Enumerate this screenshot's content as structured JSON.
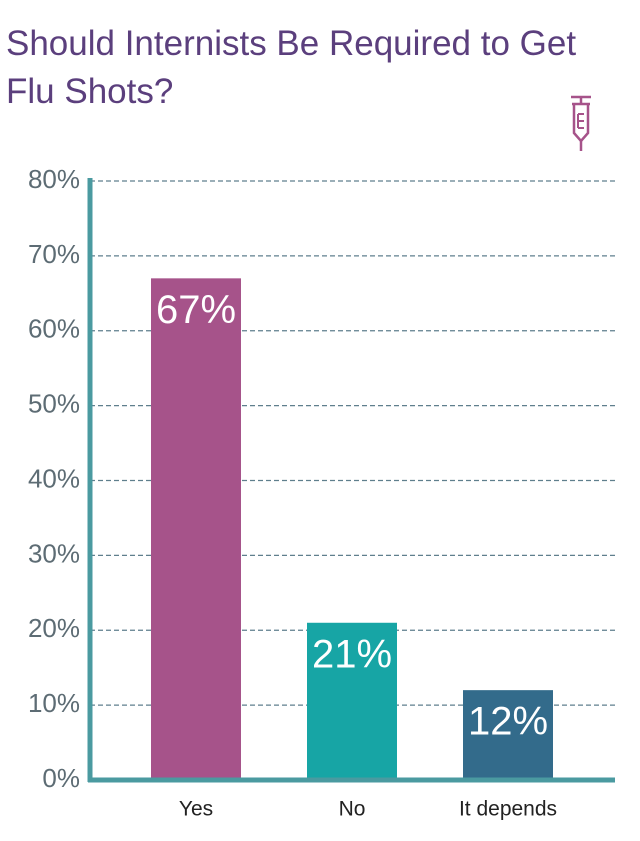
{
  "chart_data": {
    "type": "bar",
    "title": "Should Internists Be Required to Get Flu Shots?",
    "categories": [
      "Yes",
      "No",
      "It depends"
    ],
    "values": [
      67,
      21,
      12
    ],
    "value_labels": [
      "67%",
      "21%",
      "12%"
    ],
    "colors": [
      "#a6538a",
      "#17a5a5",
      "#336b8b"
    ],
    "ylim": [
      0,
      80
    ],
    "yticks": [
      {
        "value": 0,
        "label": "0%"
      },
      {
        "value": 10,
        "label": "10%"
      },
      {
        "value": 20,
        "label": "20%"
      },
      {
        "value": 30,
        "label": "30%"
      },
      {
        "value": 40,
        "label": "40%"
      },
      {
        "value": 50,
        "label": "50%"
      },
      {
        "value": 60,
        "label": "60%"
      },
      {
        "value": 70,
        "label": "70%"
      },
      {
        "value": 80,
        "label": "80%"
      }
    ],
    "grid": true
  }
}
